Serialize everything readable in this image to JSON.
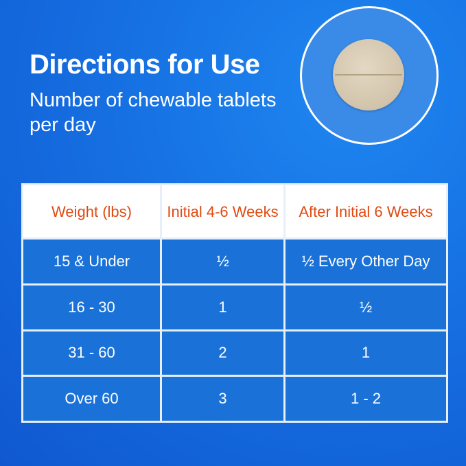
{
  "title": "Directions for Use",
  "subtitle": "Number of chewable tablets per day",
  "image": {
    "icon": "chewable-tablet"
  },
  "table": {
    "headers": [
      "Weight (lbs)",
      "Initial 4-6 Weeks",
      "After Initial 6 Weeks"
    ],
    "rows": [
      [
        "15 & Under",
        "½",
        "½ Every Other Day"
      ],
      [
        "16 - 30",
        "1",
        "½"
      ],
      [
        "31 - 60",
        "2",
        "1"
      ],
      [
        "Over 60",
        "3",
        "1 - 2"
      ]
    ]
  },
  "colors": {
    "background": "#1670e2",
    "header_text": "#e04a12",
    "cell": "#1a72d8"
  }
}
